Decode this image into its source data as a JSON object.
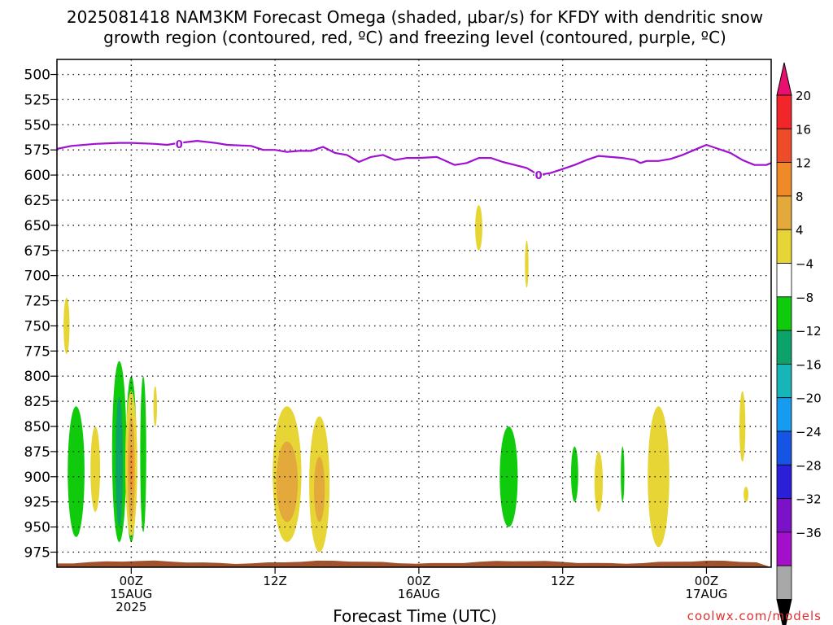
{
  "chart_data": {
    "type": "heatmap",
    "title_line1": "2025081418 NAM3KM Forecast Omega (shaded, μbar/s) for KFDY with dendritic snow",
    "title_line2": "growth region (contoured, red, ºC) and freezing level (contoured, purple, ºC)",
    "xlabel": "Forecast Time (UTC)",
    "ylabel": "",
    "credit": "coolwx.com/models",
    "y_axis": {
      "scale": "pressure",
      "units": "mb",
      "inverted": true,
      "range": [
        975,
        500
      ],
      "ticks": [
        500,
        525,
        550,
        575,
        600,
        625,
        650,
        675,
        700,
        725,
        750,
        775,
        800,
        825,
        850,
        875,
        900,
        925,
        950,
        975
      ]
    },
    "x_axis": {
      "range_hours_utc": [
        "2025-08-14 18Z",
        "2025-08-17 06Z"
      ],
      "ticks": [
        {
          "line1": "00Z",
          "line2": "15AUG",
          "line3": "2025"
        },
        {
          "line1": "12Z",
          "line2": "",
          "line3": ""
        },
        {
          "line1": "00Z",
          "line2": "16AUG",
          "line3": ""
        },
        {
          "line1": "12Z",
          "line2": "",
          "line3": ""
        },
        {
          "line1": "00Z",
          "line2": "17AUG",
          "line3": ""
        }
      ]
    },
    "grid": true,
    "colorbar": {
      "labels": [
        "20",
        "16",
        "12",
        "8",
        "4",
        "−4",
        "−8",
        "−12",
        "−16",
        "−20",
        "−24",
        "−28",
        "−32",
        "−36"
      ],
      "colors": [
        "#e8106e",
        "#f0262a",
        "#ee4b2a",
        "#f08a28",
        "#e3a93a",
        "#e6d534",
        "#ffffff",
        "#0fcb0c",
        "#0ca36a",
        "#17b5b7",
        "#179bf0",
        "#1655e4",
        "#2b1fd7",
        "#7b12c8",
        "#a410c9",
        "#a8a8a8",
        "#000000"
      ]
    },
    "freezing_level": {
      "label": "0",
      "color": "#a010d0",
      "points_hour_mb": [
        [
          -6.2,
          574
        ],
        [
          -5,
          571
        ],
        [
          -3,
          569
        ],
        [
          -1,
          568
        ],
        [
          0,
          568
        ],
        [
          2,
          569
        ],
        [
          3,
          570
        ],
        [
          4,
          568
        ],
        [
          5.5,
          566
        ],
        [
          7,
          568
        ],
        [
          8,
          570
        ],
        [
          10,
          571
        ],
        [
          11,
          575
        ],
        [
          12,
          575
        ],
        [
          13,
          577
        ],
        [
          14,
          576
        ],
        [
          15,
          576
        ],
        [
          16,
          572
        ],
        [
          17,
          578
        ],
        [
          18,
          580
        ],
        [
          19,
          587
        ],
        [
          20,
          582
        ],
        [
          21,
          580
        ],
        [
          22,
          585
        ],
        [
          23,
          583
        ],
        [
          24,
          583
        ],
        [
          25.5,
          582
        ],
        [
          27,
          590
        ],
        [
          28,
          588
        ],
        [
          29,
          583
        ],
        [
          30,
          583
        ],
        [
          31,
          587
        ],
        [
          33,
          593
        ],
        [
          34,
          600
        ],
        [
          35,
          598
        ],
        [
          36,
          594
        ],
        [
          37,
          590
        ],
        [
          38,
          585
        ],
        [
          39,
          581
        ],
        [
          40,
          582
        ],
        [
          41,
          583
        ],
        [
          42,
          585
        ],
        [
          42.5,
          588
        ],
        [
          43,
          586
        ],
        [
          44,
          586
        ],
        [
          45,
          584
        ],
        [
          46,
          580
        ],
        [
          47,
          575
        ],
        [
          48,
          570
        ],
        [
          49,
          574
        ],
        [
          50,
          578
        ],
        [
          51,
          585
        ],
        [
          52,
          590
        ],
        [
          53,
          590
        ],
        [
          54,
          588
        ]
      ]
    },
    "omega_features": [
      {
        "category": "4",
        "color": "#e6d534",
        "hour": -5.4,
        "top_mb": 722,
        "bottom_mb": 778,
        "halfwidth_h": 0.25
      },
      {
        "category": "-4",
        "color": "#0fcb0c",
        "hour": -4.6,
        "top_mb": 830,
        "bottom_mb": 960,
        "halfwidth_h": 0.7
      },
      {
        "category": "4",
        "color": "#e6d534",
        "hour": -3.0,
        "top_mb": 850,
        "bottom_mb": 935,
        "halfwidth_h": 0.4
      },
      {
        "category": "-4",
        "color": "#0fcb0c",
        "hour": -1.0,
        "top_mb": 785,
        "bottom_mb": 965,
        "halfwidth_h": 0.6
      },
      {
        "category": "-8",
        "color": "#0ca36a",
        "hour": -1.0,
        "top_mb": 820,
        "bottom_mb": 950,
        "halfwidth_h": 0.3
      },
      {
        "category": "-4",
        "color": "#0fcb0c",
        "hour": 0.0,
        "top_mb": 800,
        "bottom_mb": 965,
        "halfwidth_h": 0.45
      },
      {
        "category": "4",
        "color": "#e6d534",
        "hour": 0.0,
        "top_mb": 815,
        "bottom_mb": 960,
        "halfwidth_h": 0.5
      },
      {
        "category": "8",
        "color": "#e3a93a",
        "hour": 0.0,
        "top_mb": 840,
        "bottom_mb": 945,
        "halfwidth_h": 0.3
      },
      {
        "category": "12",
        "color": "#f08a28",
        "hour": 0.0,
        "top_mb": 870,
        "bottom_mb": 915,
        "halfwidth_h": 0.15
      },
      {
        "category": "-4",
        "color": "#0fcb0c",
        "hour": 1.0,
        "top_mb": 800,
        "bottom_mb": 955,
        "halfwidth_h": 0.25
      },
      {
        "category": "4",
        "color": "#e6d534",
        "hour": 2.0,
        "top_mb": 810,
        "bottom_mb": 850,
        "halfwidth_h": 0.15
      },
      {
        "category": "4",
        "color": "#e6d534",
        "hour": 13.0,
        "top_mb": 830,
        "bottom_mb": 965,
        "halfwidth_h": 1.2
      },
      {
        "category": "8",
        "color": "#e3a93a",
        "hour": 13.0,
        "top_mb": 865,
        "bottom_mb": 945,
        "halfwidth_h": 0.9
      },
      {
        "category": "4",
        "color": "#e6d534",
        "hour": 15.7,
        "top_mb": 840,
        "bottom_mb": 975,
        "halfwidth_h": 0.85
      },
      {
        "category": "8",
        "color": "#e3a93a",
        "hour": 15.7,
        "top_mb": 880,
        "bottom_mb": 945,
        "halfwidth_h": 0.45
      },
      {
        "category": "4",
        "color": "#e6d534",
        "hour": 29.0,
        "top_mb": 630,
        "bottom_mb": 675,
        "halfwidth_h": 0.3
      },
      {
        "category": "4",
        "color": "#e6d534",
        "hour": 33.0,
        "top_mb": 665,
        "bottom_mb": 712,
        "halfwidth_h": 0.15
      },
      {
        "category": "-4",
        "color": "#0fcb0c",
        "hour": 31.5,
        "top_mb": 850,
        "bottom_mb": 950,
        "halfwidth_h": 0.75
      },
      {
        "category": "-4",
        "color": "#0fcb0c",
        "hour": 37.0,
        "top_mb": 870,
        "bottom_mb": 925,
        "halfwidth_h": 0.3
      },
      {
        "category": "4",
        "color": "#e6d534",
        "hour": 39.0,
        "top_mb": 875,
        "bottom_mb": 935,
        "halfwidth_h": 0.35
      },
      {
        "category": "-4",
        "color": "#0fcb0c",
        "hour": 41.0,
        "top_mb": 870,
        "bottom_mb": 925,
        "halfwidth_h": 0.15
      },
      {
        "category": "4",
        "color": "#e6d534",
        "hour": 44.0,
        "top_mb": 830,
        "bottom_mb": 970,
        "halfwidth_h": 0.9
      },
      {
        "category": "4",
        "color": "#e6d534",
        "hour": 51.0,
        "top_mb": 815,
        "bottom_mb": 885,
        "halfwidth_h": 0.25
      },
      {
        "category": "4",
        "color": "#e6d534",
        "hour": 51.3,
        "top_mb": 910,
        "bottom_mb": 925,
        "halfwidth_h": 0.2
      }
    ],
    "ground": {
      "color": "#a0522d",
      "top_mb": 985
    }
  }
}
